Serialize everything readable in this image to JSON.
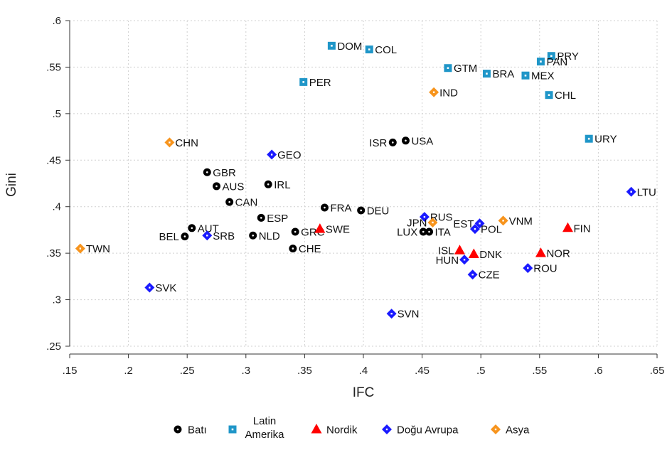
{
  "chart_data": {
    "type": "scatter",
    "title": "",
    "xlabel": "IFC",
    "ylabel": "Gini",
    "xlim": [
      0.15,
      0.65
    ],
    "ylim": [
      0.25,
      0.6
    ],
    "x_ticks": [
      ".15",
      ".2",
      ".25",
      ".3",
      ".35",
      ".4",
      ".45",
      ".5",
      ".55",
      ".6",
      ".65"
    ],
    "y_ticks": [
      ".25",
      ".3",
      ".35",
      ".4",
      ".45",
      ".5",
      ".55",
      ".6"
    ],
    "grid": true,
    "legend_position": "bottom",
    "series": [
      {
        "name": "Batı",
        "marker": "circle",
        "color": "#000000",
        "points": [
          {
            "label": "USA",
            "x": 0.436,
            "y": 0.471
          },
          {
            "label": "ISR",
            "x": 0.425,
            "y": 0.469,
            "label_side": "left"
          },
          {
            "label": "GBR",
            "x": 0.267,
            "y": 0.437
          },
          {
            "label": "IRL",
            "x": 0.319,
            "y": 0.424
          },
          {
            "label": "AUS",
            "x": 0.275,
            "y": 0.422
          },
          {
            "label": "CAN",
            "x": 0.286,
            "y": 0.405
          },
          {
            "label": "FRA",
            "x": 0.367,
            "y": 0.399
          },
          {
            "label": "DEU",
            "x": 0.398,
            "y": 0.396
          },
          {
            "label": "ESP",
            "x": 0.313,
            "y": 0.388
          },
          {
            "label": "AUT",
            "x": 0.254,
            "y": 0.377
          },
          {
            "label": "GRC",
            "x": 0.342,
            "y": 0.373
          },
          {
            "label": "LUX",
            "x": 0.451,
            "y": 0.373,
            "label_side": "left"
          },
          {
            "label": "ITA",
            "x": 0.456,
            "y": 0.373
          },
          {
            "label": "NLD",
            "x": 0.306,
            "y": 0.369
          },
          {
            "label": "BEL",
            "x": 0.248,
            "y": 0.368,
            "label_side": "left"
          },
          {
            "label": "CHE",
            "x": 0.34,
            "y": 0.355
          }
        ]
      },
      {
        "name": "Latin Amerika",
        "name_lines": [
          "Latin",
          "Amerika"
        ],
        "marker": "square",
        "color": "#1f96c8",
        "points": [
          {
            "label": "DOM",
            "x": 0.373,
            "y": 0.573
          },
          {
            "label": "COL",
            "x": 0.405,
            "y": 0.569
          },
          {
            "label": "PRY",
            "x": 0.56,
            "y": 0.562
          },
          {
            "label": "PAN",
            "x": 0.551,
            "y": 0.556
          },
          {
            "label": "GTM",
            "x": 0.472,
            "y": 0.549
          },
          {
            "label": "BRA",
            "x": 0.505,
            "y": 0.543
          },
          {
            "label": "MEX",
            "x": 0.538,
            "y": 0.541
          },
          {
            "label": "PER",
            "x": 0.349,
            "y": 0.534
          },
          {
            "label": "CHL",
            "x": 0.558,
            "y": 0.52
          },
          {
            "label": "URY",
            "x": 0.592,
            "y": 0.473
          }
        ]
      },
      {
        "name": "Nordik",
        "marker": "triangle",
        "color": "#ff0000",
        "points": [
          {
            "label": "FIN",
            "x": 0.574,
            "y": 0.377
          },
          {
            "label": "SWE",
            "x": 0.363,
            "y": 0.376
          },
          {
            "label": "ISL",
            "x": 0.482,
            "y": 0.353,
            "label_side": "left"
          },
          {
            "label": "NOR",
            "x": 0.551,
            "y": 0.35
          },
          {
            "label": "DNK",
            "x": 0.494,
            "y": 0.349
          }
        ]
      },
      {
        "name": "Doğu Avrupa",
        "marker": "diamond",
        "color": "#1a1aff",
        "points": [
          {
            "label": "GEO",
            "x": 0.322,
            "y": 0.456
          },
          {
            "label": "LTU",
            "x": 0.628,
            "y": 0.416
          },
          {
            "label": "RUS",
            "x": 0.452,
            "y": 0.389
          },
          {
            "label": "EST",
            "x": 0.499,
            "y": 0.382,
            "label_side": "left"
          },
          {
            "label": "POL",
            "x": 0.495,
            "y": 0.376
          },
          {
            "label": "SRB",
            "x": 0.267,
            "y": 0.369
          },
          {
            "label": "HUN",
            "x": 0.486,
            "y": 0.343,
            "label_side": "left"
          },
          {
            "label": "ROU",
            "x": 0.54,
            "y": 0.334
          },
          {
            "label": "CZE",
            "x": 0.493,
            "y": 0.327
          },
          {
            "label": "SVK",
            "x": 0.218,
            "y": 0.313
          },
          {
            "label": "SVN",
            "x": 0.424,
            "y": 0.285
          }
        ]
      },
      {
        "name": "Asya",
        "marker": "diamond",
        "color": "#f7941d",
        "points": [
          {
            "label": "IND",
            "x": 0.46,
            "y": 0.523
          },
          {
            "label": "CHN",
            "x": 0.235,
            "y": 0.469
          },
          {
            "label": "VNM",
            "x": 0.519,
            "y": 0.385
          },
          {
            "label": "JPN",
            "x": 0.459,
            "y": 0.383,
            "label_side": "left"
          },
          {
            "label": "TWN",
            "x": 0.159,
            "y": 0.355
          }
        ]
      }
    ]
  }
}
